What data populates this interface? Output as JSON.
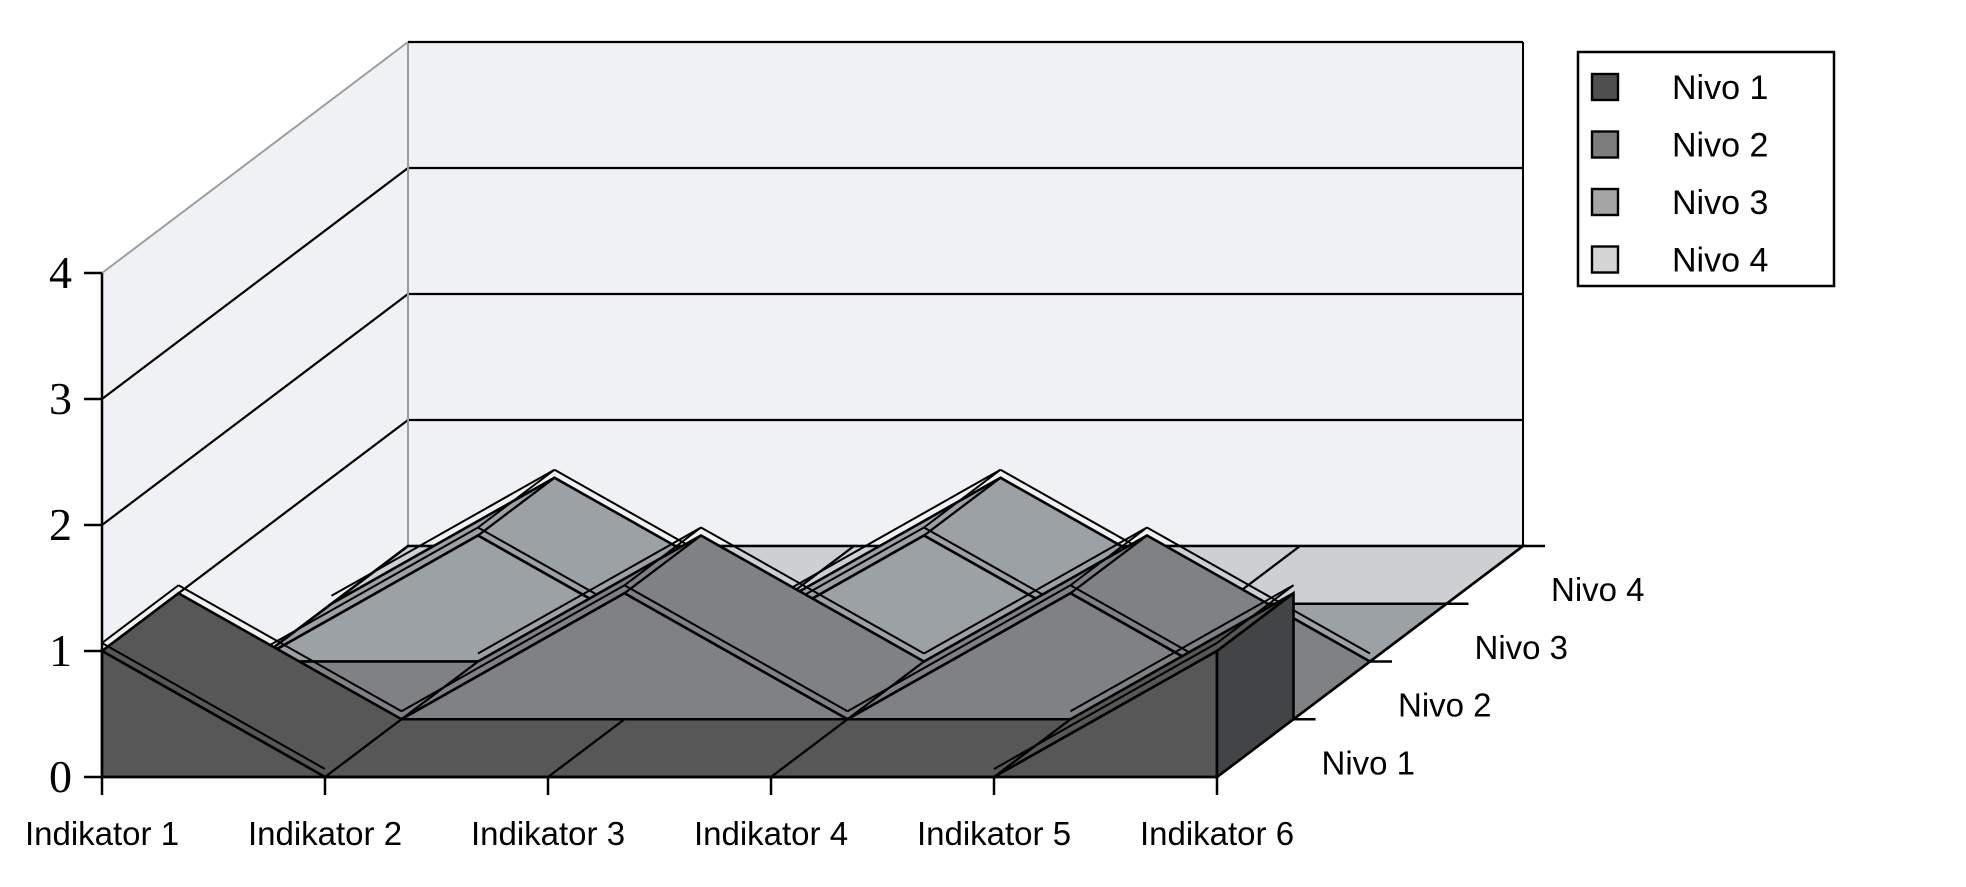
{
  "chart_data": {
    "type": "area",
    "subtype": "3d-area",
    "title": "",
    "categories": [
      "Indikator 1",
      "Indikator 2",
      "Indikator 3",
      "Indikator 4",
      "Indikator 5",
      "Indikator 6"
    ],
    "series": [
      {
        "name": "Nivo 1",
        "values": [
          1,
          0,
          0,
          0,
          0,
          1
        ],
        "color": "#575757",
        "cap_color": "#434446",
        "legend_color": "#4f4f4f"
      },
      {
        "name": "Nivo 2",
        "values": [
          0,
          0,
          1,
          0,
          1,
          0
        ],
        "color": "#7f8184",
        "cap_color": "#6a6c6e",
        "legend_color": "#7d7d7d"
      },
      {
        "name": "Nivo 3",
        "values": [
          0,
          1,
          0,
          1,
          0,
          0
        ],
        "color": "#9ca1a5",
        "cap_color": "#888d91",
        "legend_color": "#a5a5a5"
      },
      {
        "name": "Nivo 4",
        "values": [
          0,
          0,
          0,
          0,
          0,
          0
        ],
        "color": "#ccd0d3",
        "cap_color": "#b8bcbf",
        "legend_color": "#d4d4d4"
      }
    ],
    "value_axis": {
      "min": 0,
      "max": 4,
      "step": 1,
      "ticks": [
        "0",
        "1",
        "2",
        "3",
        "4"
      ]
    },
    "depth_axis": {
      "labels": [
        "Nivo 1",
        "Nivo 2",
        "Nivo 3",
        "Nivo 4"
      ]
    },
    "legend": {
      "position": "top-right",
      "entries": [
        "Nivo 1",
        "Nivo 2",
        "Nivo 3",
        "Nivo 4"
      ]
    },
    "colors": {
      "wall": "#f0f1f3",
      "edge": "#000000",
      "soft_edge": "#9b9fa0",
      "background": "#ffffff"
    },
    "grid": true,
    "ylim": [
      0,
      4
    ]
  }
}
